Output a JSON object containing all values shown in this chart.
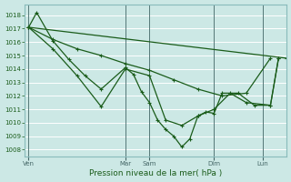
{
  "background_color": "#cce8e5",
  "grid_color": "#b0d8d4",
  "line_color": "#1a5c1a",
  "xlabel": "Pression niveau de la mer( hPa )",
  "ylim": [
    1007.5,
    1018.8
  ],
  "yticks": [
    1008,
    1009,
    1010,
    1011,
    1012,
    1013,
    1014,
    1015,
    1016,
    1017,
    1018
  ],
  "day_labels": [
    "Ven",
    "Mar",
    "Sam",
    "Dim",
    "Lun"
  ],
  "day_x": [
    0,
    12,
    15,
    23,
    29
  ],
  "xlim": [
    -0.5,
    32
  ],
  "series_straight": {
    "x": [
      0,
      32
    ],
    "y": [
      1017.1,
      1014.8
    ]
  },
  "series_mid": {
    "x": [
      0,
      3,
      6,
      9,
      12,
      15,
      18,
      21,
      24,
      27,
      30
    ],
    "y": [
      1017.1,
      1016.2,
      1015.5,
      1015.0,
      1014.4,
      1013.9,
      1013.2,
      1012.5,
      1012.0,
      1012.2,
      1014.8
    ]
  },
  "series_sharp": {
    "x": [
      0,
      1,
      3,
      5,
      7,
      9,
      12,
      13,
      14,
      15,
      16,
      17,
      18,
      19,
      20,
      21,
      22,
      23,
      24,
      26,
      28,
      30,
      31
    ],
    "y": [
      1017.1,
      1018.2,
      1016.1,
      1014.7,
      1013.5,
      1012.5,
      1014.1,
      1013.6,
      1012.3,
      1011.5,
      1010.2,
      1009.5,
      1009.0,
      1008.2,
      1008.8,
      1010.5,
      1010.8,
      1010.7,
      1012.2,
      1012.2,
      1011.3,
      1011.3,
      1014.8
    ]
  },
  "series_v": {
    "x": [
      0,
      3,
      6,
      9,
      12,
      15,
      17,
      19,
      21,
      23,
      25,
      27,
      30,
      31
    ],
    "y": [
      1017.1,
      1015.5,
      1013.5,
      1011.2,
      1014.0,
      1013.5,
      1010.2,
      1009.8,
      1010.5,
      1011.0,
      1012.2,
      1011.5,
      1011.3,
      1014.8
    ]
  }
}
